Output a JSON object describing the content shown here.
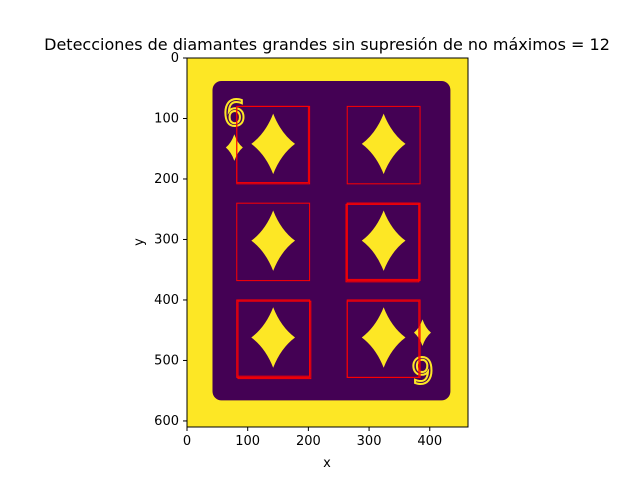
{
  "chart_data": {
    "type": "image",
    "title": "Detecciones de diamantes grandes sin supresión de no máximos = 12",
    "xlabel": "x",
    "ylabel": "y",
    "xlim": [
      0,
      463
    ],
    "ylim": [
      610,
      0
    ],
    "xticks": [
      0,
      100,
      200,
      300,
      400
    ],
    "yticks": [
      0,
      100,
      200,
      300,
      400,
      500,
      600
    ],
    "colors": {
      "background": "#fde725",
      "card": "#440154",
      "box": "#ff0000"
    },
    "card": {
      "x": 42,
      "y": 38,
      "width": 392,
      "height": 528
    },
    "corner_rank_labels": [
      {
        "text": "6",
        "x": 78,
        "y": 95,
        "rotation": 0
      },
      {
        "text": "6",
        "x": 388,
        "y": 512,
        "rotation": 180
      }
    ],
    "diamonds": [
      {
        "cx": 142,
        "cy": 142,
        "w": 72,
        "h": 100
      },
      {
        "cx": 324,
        "cy": 142,
        "w": 72,
        "h": 100
      },
      {
        "cx": 142,
        "cy": 302,
        "w": 72,
        "h": 100
      },
      {
        "cx": 324,
        "cy": 302,
        "w": 72,
        "h": 100
      },
      {
        "cx": 142,
        "cy": 462,
        "w": 72,
        "h": 100
      },
      {
        "cx": 324,
        "cy": 462,
        "w": 72,
        "h": 100
      },
      {
        "cx": 78,
        "cy": 148,
        "w": 28,
        "h": 44
      },
      {
        "cx": 388,
        "cy": 454,
        "w": 28,
        "h": 44
      }
    ],
    "detections": [
      {
        "x": 82,
        "y": 80,
        "w": 120,
        "h": 128
      },
      {
        "x": 264,
        "y": 80,
        "w": 120,
        "h": 128
      },
      {
        "x": 82,
        "y": 240,
        "w": 120,
        "h": 128
      },
      {
        "x": 264,
        "y": 240,
        "w": 120,
        "h": 128
      },
      {
        "x": 262,
        "y": 242,
        "w": 120,
        "h": 128
      },
      {
        "x": 82,
        "y": 400,
        "w": 120,
        "h": 128
      },
      {
        "x": 84,
        "y": 402,
        "w": 120,
        "h": 128
      },
      {
        "x": 264,
        "y": 400,
        "w": 120,
        "h": 128
      },
      {
        "x": 82,
        "y": 80,
        "w": 118,
        "h": 126
      },
      {
        "x": 264,
        "y": 240,
        "w": 118,
        "h": 126
      },
      {
        "x": 84,
        "y": 400,
        "w": 118,
        "h": 126
      },
      {
        "x": 264,
        "y": 402,
        "w": 118,
        "h": 126
      }
    ]
  }
}
